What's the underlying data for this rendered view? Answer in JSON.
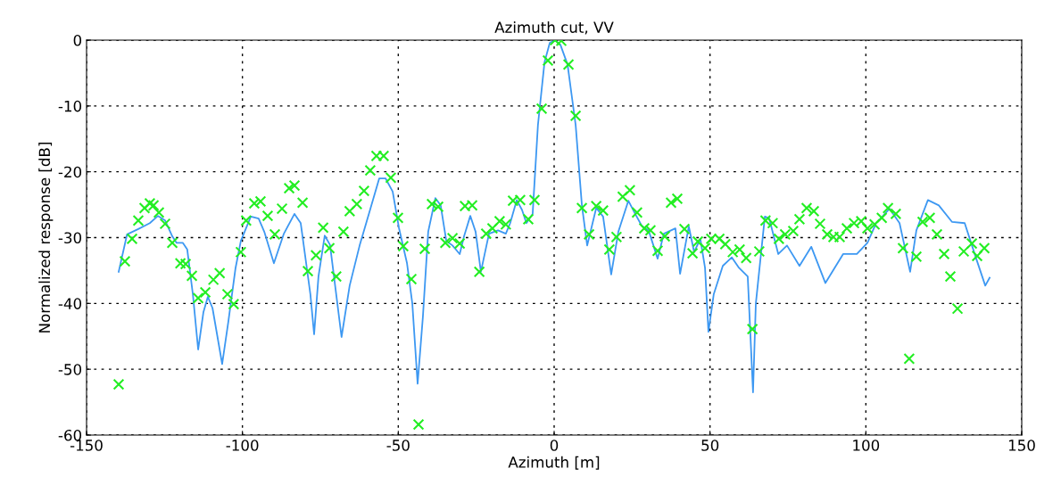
{
  "chart_data": {
    "type": "line",
    "title": "Azimuth cut, VV",
    "xlabel": "Azimuth [m]",
    "ylabel": "Normalized response [dB]",
    "xlim": [
      -150,
      150
    ],
    "ylim": [
      -60,
      0
    ],
    "xticks": [
      -150,
      -100,
      -50,
      0,
      50,
      100,
      150
    ],
    "yticks": [
      -60,
      -50,
      -40,
      -30,
      -20,
      -10,
      0
    ],
    "grid": true,
    "legend": false,
    "series": [
      {
        "color": "#3d98f2",
        "marker": "none",
        "line_style": "solid",
        "x": [
          -139.7,
          -137,
          -133.4,
          -129.7,
          -127.1,
          -124.8,
          -122.5,
          -121.1,
          -119.1,
          -117.7,
          -115.9,
          -114.2,
          -112.5,
          -111.1,
          -109.6,
          -106.5,
          -104.5,
          -102.2,
          -100.5,
          -97.3,
          -94.8,
          -93,
          -89.9,
          -86.7,
          -83.3,
          -81.3,
          -78.2,
          -77,
          -75.6,
          -73.6,
          -71.9,
          -68.2,
          -65.6,
          -62.4,
          -59,
          -56.1,
          -54.1,
          -51.8,
          -49.8,
          -47.2,
          -45.5,
          -43.8,
          -42.1,
          -40.4,
          -38.1,
          -36.4,
          -34.6,
          -32.6,
          -30.3,
          -28.9,
          -26.9,
          -25.2,
          -23.5,
          -20.9,
          -18,
          -15.5,
          -14.1,
          -12,
          -10.3,
          -8.9,
          -6.9,
          -5.2,
          -3.1,
          -1.4,
          0.3,
          2,
          4.3,
          6.9,
          8.9,
          10.6,
          13.5,
          15.7,
          18.3,
          20.6,
          23.8,
          26,
          28.1,
          30.3,
          33.2,
          35.2,
          38.9,
          40.4,
          43.2,
          44.9,
          46.9,
          48.4,
          49.5,
          51.2,
          54.1,
          57,
          59.3,
          62.1,
          63.8,
          64.7,
          67.6,
          69,
          71.9,
          74.7,
          78.7,
          82.5,
          87,
          92.7,
          97.1,
          100.5,
          103.3,
          107.6,
          110.8,
          114.2,
          116.2,
          119.9,
          123.4,
          127.6,
          131.7,
          135.4,
          138.3,
          139.7
        ],
        "values": [
          -35.2,
          -29.5,
          -28.7,
          -27.8,
          -26.7,
          -27.4,
          -29.8,
          -30.8,
          -30.8,
          -31.8,
          -38.6,
          -47,
          -41.3,
          -39,
          -40.7,
          -49.2,
          -42.7,
          -34.6,
          -30.5,
          -26.8,
          -27.1,
          -29.1,
          -33.9,
          -29.4,
          -26.4,
          -27.8,
          -38.6,
          -44.7,
          -35.9,
          -29.7,
          -31.1,
          -45.1,
          -37.3,
          -31.2,
          -25.7,
          -21,
          -21,
          -23,
          -28.5,
          -33.9,
          -40,
          -52.2,
          -42,
          -29.1,
          -24,
          -25.1,
          -30.5,
          -31.2,
          -32.5,
          -29.8,
          -26.7,
          -29.1,
          -35.2,
          -29.4,
          -28.9,
          -29.4,
          -27.8,
          -24.3,
          -25.8,
          -27.8,
          -26.4,
          -12.9,
          -3.4,
          -0.4,
          0,
          -0.7,
          -3.7,
          -12.9,
          -25.1,
          -31.2,
          -25.5,
          -26.8,
          -35.6,
          -29.1,
          -24.4,
          -26.4,
          -28.2,
          -28.9,
          -33.2,
          -29.4,
          -28.6,
          -35.5,
          -28.3,
          -32.2,
          -30.2,
          -34.6,
          -44.3,
          -38.6,
          -34.3,
          -33,
          -34.6,
          -35.9,
          -53.5,
          -40,
          -26.8,
          -27.1,
          -32.5,
          -31.2,
          -34.3,
          -31.4,
          -36.9,
          -32.5,
          -32.5,
          -30.8,
          -27.8,
          -25.6,
          -27.8,
          -35.2,
          -28.9,
          -24.3,
          -25.1,
          -27.6,
          -27.8,
          -33.2,
          -37.3,
          -36.1
        ]
      },
      {
        "type": "scatter",
        "color": "#22ee22",
        "marker": "cross",
        "x": [
          -139.7,
          -137.7,
          -135.4,
          -133.4,
          -131.4,
          -129.7,
          -128.5,
          -126.8,
          -124.8,
          -122.5,
          -119.9,
          -118.2,
          -116.2,
          -114.2,
          -111.9,
          -109.3,
          -107.3,
          -104.8,
          -102.8,
          -100.5,
          -98.8,
          -96.2,
          -94.2,
          -91.9,
          -89.6,
          -87.3,
          -85,
          -83.3,
          -80.7,
          -79,
          -76.4,
          -74.1,
          -72.1,
          -69.9,
          -67.6,
          -65.6,
          -63.3,
          -61,
          -59,
          -57,
          -54.7,
          -52.4,
          -50.1,
          -48.4,
          -45.8,
          -43.5,
          -41.5,
          -39.2,
          -37.2,
          -34.9,
          -32.6,
          -30.3,
          -28.6,
          -26.3,
          -24,
          -21.8,
          -19.8,
          -17.5,
          -15.5,
          -13.2,
          -10.9,
          -8.3,
          -6.3,
          -4,
          -2,
          0.3,
          2.3,
          4.6,
          6.9,
          8.9,
          11.2,
          13.5,
          15.7,
          17.7,
          20,
          22,
          24.3,
          26.6,
          28.9,
          30.9,
          33.2,
          35.5,
          37.5,
          39.5,
          41.8,
          44.4,
          46.1,
          48.4,
          50.4,
          53,
          54.9,
          57.3,
          59.5,
          61.6,
          63.6,
          65.8,
          67.8,
          70.1,
          72.1,
          74.1,
          76.7,
          78.7,
          81,
          83.3,
          85.3,
          87.6,
          89.6,
          91.6,
          93.9,
          96.2,
          98.5,
          100.5,
          102.8,
          105.1,
          107.1,
          109.6,
          111.9,
          113.9,
          116.2,
          118.2,
          120.5,
          122.8,
          125.1,
          127.1,
          129.4,
          131.4,
          134,
          135.7,
          138
        ],
        "values": [
          -52.3,
          -33.6,
          -30.2,
          -27.4,
          -25.5,
          -24.8,
          -25.1,
          -26.2,
          -27.9,
          -30.8,
          -33.9,
          -34,
          -35.8,
          -39.2,
          -38.3,
          -36.4,
          -35.4,
          -38.6,
          -40.1,
          -32.2,
          -27.4,
          -24.8,
          -24.5,
          -26.7,
          -29.5,
          -25.6,
          -22.5,
          -22.1,
          -24.7,
          -35.1,
          -32.7,
          -28.5,
          -31.6,
          -35.9,
          -29.1,
          -26,
          -24.9,
          -22.9,
          -19.8,
          -17.6,
          -17.6,
          -20.9,
          -27,
          -31.3,
          -36.3,
          -58.4,
          -31.7,
          -24.9,
          -25.3,
          -30.8,
          -30.1,
          -30.9,
          -25.2,
          -25.1,
          -35.2,
          -29.4,
          -28.6,
          -27.5,
          -28,
          -24.4,
          -24.3,
          -27.2,
          -24.3,
          -10.4,
          -3.1,
          0,
          -0.1,
          -3.7,
          -11.5,
          -25.5,
          -29.5,
          -25.2,
          -25.9,
          -31.8,
          -29.9,
          -23.8,
          -22.8,
          -26.2,
          -28.6,
          -28.9,
          -32,
          -29.8,
          -24.7,
          -24.1,
          -28.7,
          -32.4,
          -30.6,
          -31.6,
          -30.2,
          -30.2,
          -31,
          -32.2,
          -31.8,
          -33.1,
          -43.9,
          -32.1,
          -27.4,
          -27.8,
          -30.2,
          -29.5,
          -29,
          -27.2,
          -25.5,
          -26,
          -27.9,
          -29.5,
          -29.9,
          -29.9,
          -28.6,
          -27.8,
          -27.5,
          -28.6,
          -28,
          -27,
          -25.5,
          -26.4,
          -31.6,
          -48.4,
          -32.9,
          -27.6,
          -27,
          -29.5,
          -32.5,
          -35.9,
          -40.8,
          -32.1,
          -30.9,
          -32.8,
          -31.6
        ]
      }
    ]
  }
}
